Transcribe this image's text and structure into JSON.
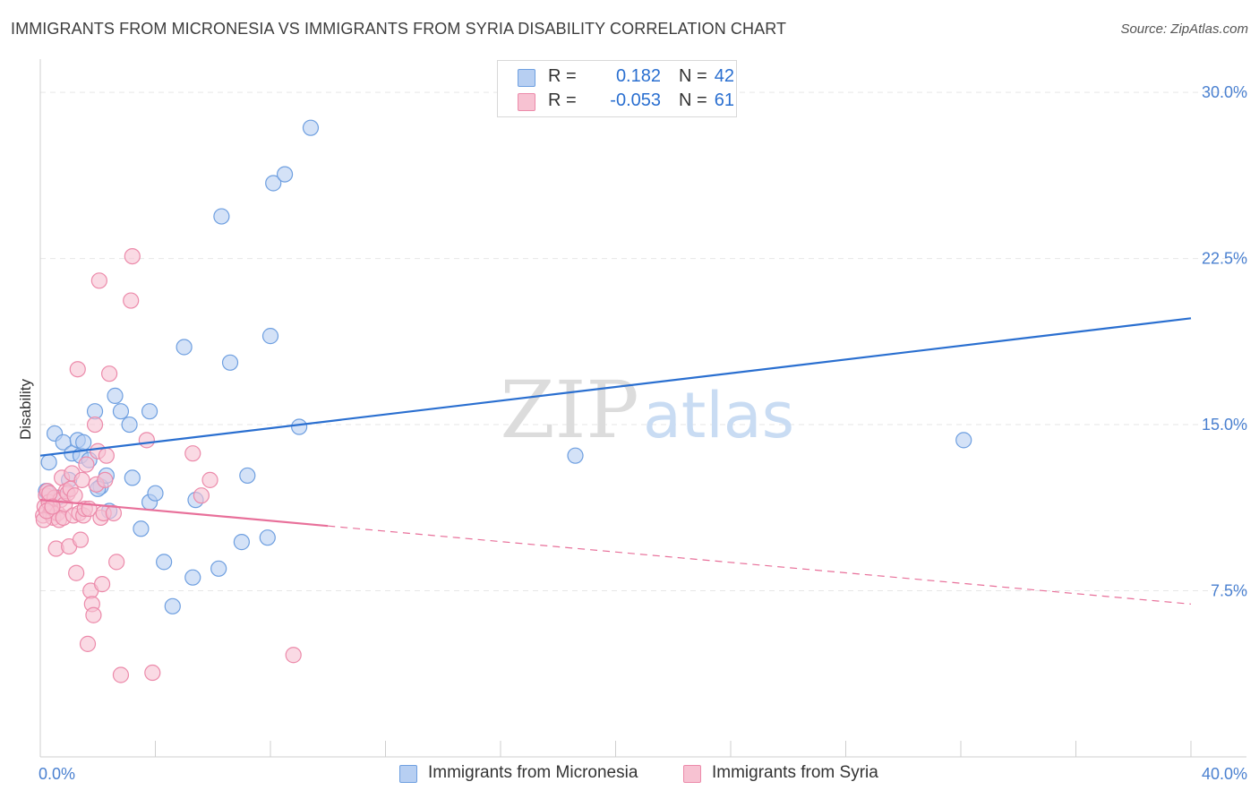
{
  "title": "IMMIGRANTS FROM MICRONESIA VS IMMIGRANTS FROM SYRIA DISABILITY CORRELATION CHART",
  "source": "Source: ZipAtlas.com",
  "watermark": {
    "zip": "ZIP",
    "atlas": "atlas"
  },
  "legend_top": {
    "rows": [
      {
        "r_label": "R =",
        "r_value": "0.182",
        "n_label": "N =",
        "n_value": "42"
      },
      {
        "r_label": "R =",
        "r_value": "-0.053",
        "n_label": "N =",
        "n_value": "61"
      }
    ]
  },
  "colors": {
    "micronesia_fill": "#b7cff2",
    "micronesia_stroke": "#6e9fe0",
    "micronesia_line": "#2a6fd0",
    "syria_fill": "#f7c2d2",
    "syria_stroke": "#ec8aaa",
    "syria_line": "#e8709a",
    "tick_label": "#4a80d0",
    "grid": "#e6e6e6"
  },
  "chart_data": {
    "type": "scatter",
    "title": "IMMIGRANTS FROM MICRONESIA VS IMMIGRANTS FROM SYRIA DISABILITY CORRELATION CHART",
    "xlabel": "",
    "ylabel": "Disability",
    "xlim": [
      0,
      40
    ],
    "ylim": [
      0,
      31.5
    ],
    "x_tick_labels": [
      {
        "value": 0,
        "label": "0.0%"
      },
      {
        "value": 40,
        "label": "40.0%"
      }
    ],
    "y_tick_labels": [
      {
        "value": 7.5,
        "label": "7.5%"
      },
      {
        "value": 15,
        "label": "15.0%"
      },
      {
        "value": 22.5,
        "label": "22.5%"
      },
      {
        "value": 30,
        "label": "30.0%"
      }
    ],
    "series": [
      {
        "name": "Immigrants from Micronesia",
        "r": 0.182,
        "n": 42,
        "trend": {
          "x0": 0,
          "y0": 13.6,
          "x1": 40,
          "y1": 19.8,
          "solid_to": 40
        },
        "points": [
          [
            0.3,
            13.3
          ],
          [
            0.5,
            14.6
          ],
          [
            0.8,
            14.2
          ],
          [
            1.0,
            12.5
          ],
          [
            1.1,
            13.7
          ],
          [
            1.3,
            14.3
          ],
          [
            1.4,
            13.6
          ],
          [
            1.5,
            14.2
          ],
          [
            1.9,
            15.6
          ],
          [
            2.1,
            12.2
          ],
          [
            2.3,
            12.7
          ],
          [
            2.4,
            11.1
          ],
          [
            2.6,
            16.3
          ],
          [
            2.8,
            15.6
          ],
          [
            3.1,
            15.0
          ],
          [
            3.2,
            12.6
          ],
          [
            3.5,
            10.3
          ],
          [
            3.8,
            11.5
          ],
          [
            3.8,
            15.6
          ],
          [
            4.0,
            11.9
          ],
          [
            4.3,
            8.8
          ],
          [
            4.6,
            6.8
          ],
          [
            5.0,
            18.5
          ],
          [
            5.3,
            8.1
          ],
          [
            5.4,
            11.6
          ],
          [
            6.2,
            8.5
          ],
          [
            6.3,
            24.4
          ],
          [
            6.6,
            17.8
          ],
          [
            7.0,
            9.7
          ],
          [
            7.2,
            12.7
          ],
          [
            7.9,
            9.9
          ],
          [
            8.0,
            19.0
          ],
          [
            8.1,
            25.9
          ],
          [
            8.5,
            26.3
          ],
          [
            9.0,
            14.9
          ],
          [
            9.4,
            28.4
          ],
          [
            18.6,
            13.6
          ],
          [
            32.1,
            14.3
          ],
          [
            0.2,
            12.0
          ],
          [
            0.6,
            11.7
          ],
          [
            1.7,
            13.4
          ],
          [
            2.0,
            12.1
          ]
        ]
      },
      {
        "name": "Immigrants from Syria",
        "r": -0.053,
        "n": 61,
        "trend": {
          "x0": 0,
          "y0": 11.6,
          "x1": 40,
          "y1": 6.9,
          "solid_to": 10
        },
        "points": [
          [
            0.1,
            10.9
          ],
          [
            0.15,
            11.3
          ],
          [
            0.2,
            11.8
          ],
          [
            0.25,
            12.0
          ],
          [
            0.3,
            11.5
          ],
          [
            0.35,
            11.0
          ],
          [
            0.4,
            11.2
          ],
          [
            0.45,
            10.8
          ],
          [
            0.5,
            11.7
          ],
          [
            0.55,
            9.4
          ],
          [
            0.6,
            11.0
          ],
          [
            0.65,
            10.7
          ],
          [
            0.7,
            11.6
          ],
          [
            0.75,
            12.6
          ],
          [
            0.8,
            10.8
          ],
          [
            0.85,
            11.4
          ],
          [
            0.9,
            12.0
          ],
          [
            0.95,
            11.9
          ],
          [
            1.0,
            9.5
          ],
          [
            1.05,
            12.1
          ],
          [
            1.1,
            12.8
          ],
          [
            1.15,
            10.9
          ],
          [
            1.2,
            11.8
          ],
          [
            1.25,
            8.3
          ],
          [
            1.3,
            17.5
          ],
          [
            1.35,
            11.0
          ],
          [
            1.4,
            9.8
          ],
          [
            1.45,
            12.5
          ],
          [
            1.5,
            10.9
          ],
          [
            1.55,
            11.2
          ],
          [
            1.6,
            13.2
          ],
          [
            1.65,
            5.1
          ],
          [
            1.7,
            11.2
          ],
          [
            1.75,
            7.5
          ],
          [
            1.8,
            6.9
          ],
          [
            1.85,
            6.4
          ],
          [
            1.9,
            15.0
          ],
          [
            1.95,
            12.3
          ],
          [
            2.0,
            13.8
          ],
          [
            2.05,
            21.5
          ],
          [
            2.1,
            10.8
          ],
          [
            2.15,
            7.8
          ],
          [
            2.2,
            11.0
          ],
          [
            2.25,
            12.5
          ],
          [
            2.3,
            13.6
          ],
          [
            2.4,
            17.3
          ],
          [
            2.55,
            11.0
          ],
          [
            2.65,
            8.8
          ],
          [
            2.8,
            3.7
          ],
          [
            3.15,
            20.6
          ],
          [
            3.2,
            22.6
          ],
          [
            3.7,
            14.3
          ],
          [
            3.9,
            3.8
          ],
          [
            5.3,
            13.7
          ],
          [
            5.6,
            11.8
          ],
          [
            5.9,
            12.5
          ],
          [
            8.8,
            4.6
          ],
          [
            0.12,
            10.7
          ],
          [
            0.22,
            11.1
          ],
          [
            0.32,
            11.9
          ],
          [
            0.42,
            11.3
          ]
        ]
      }
    ]
  },
  "bottom_legend": {
    "items": [
      "Immigrants from Micronesia",
      "Immigrants from Syria"
    ]
  }
}
